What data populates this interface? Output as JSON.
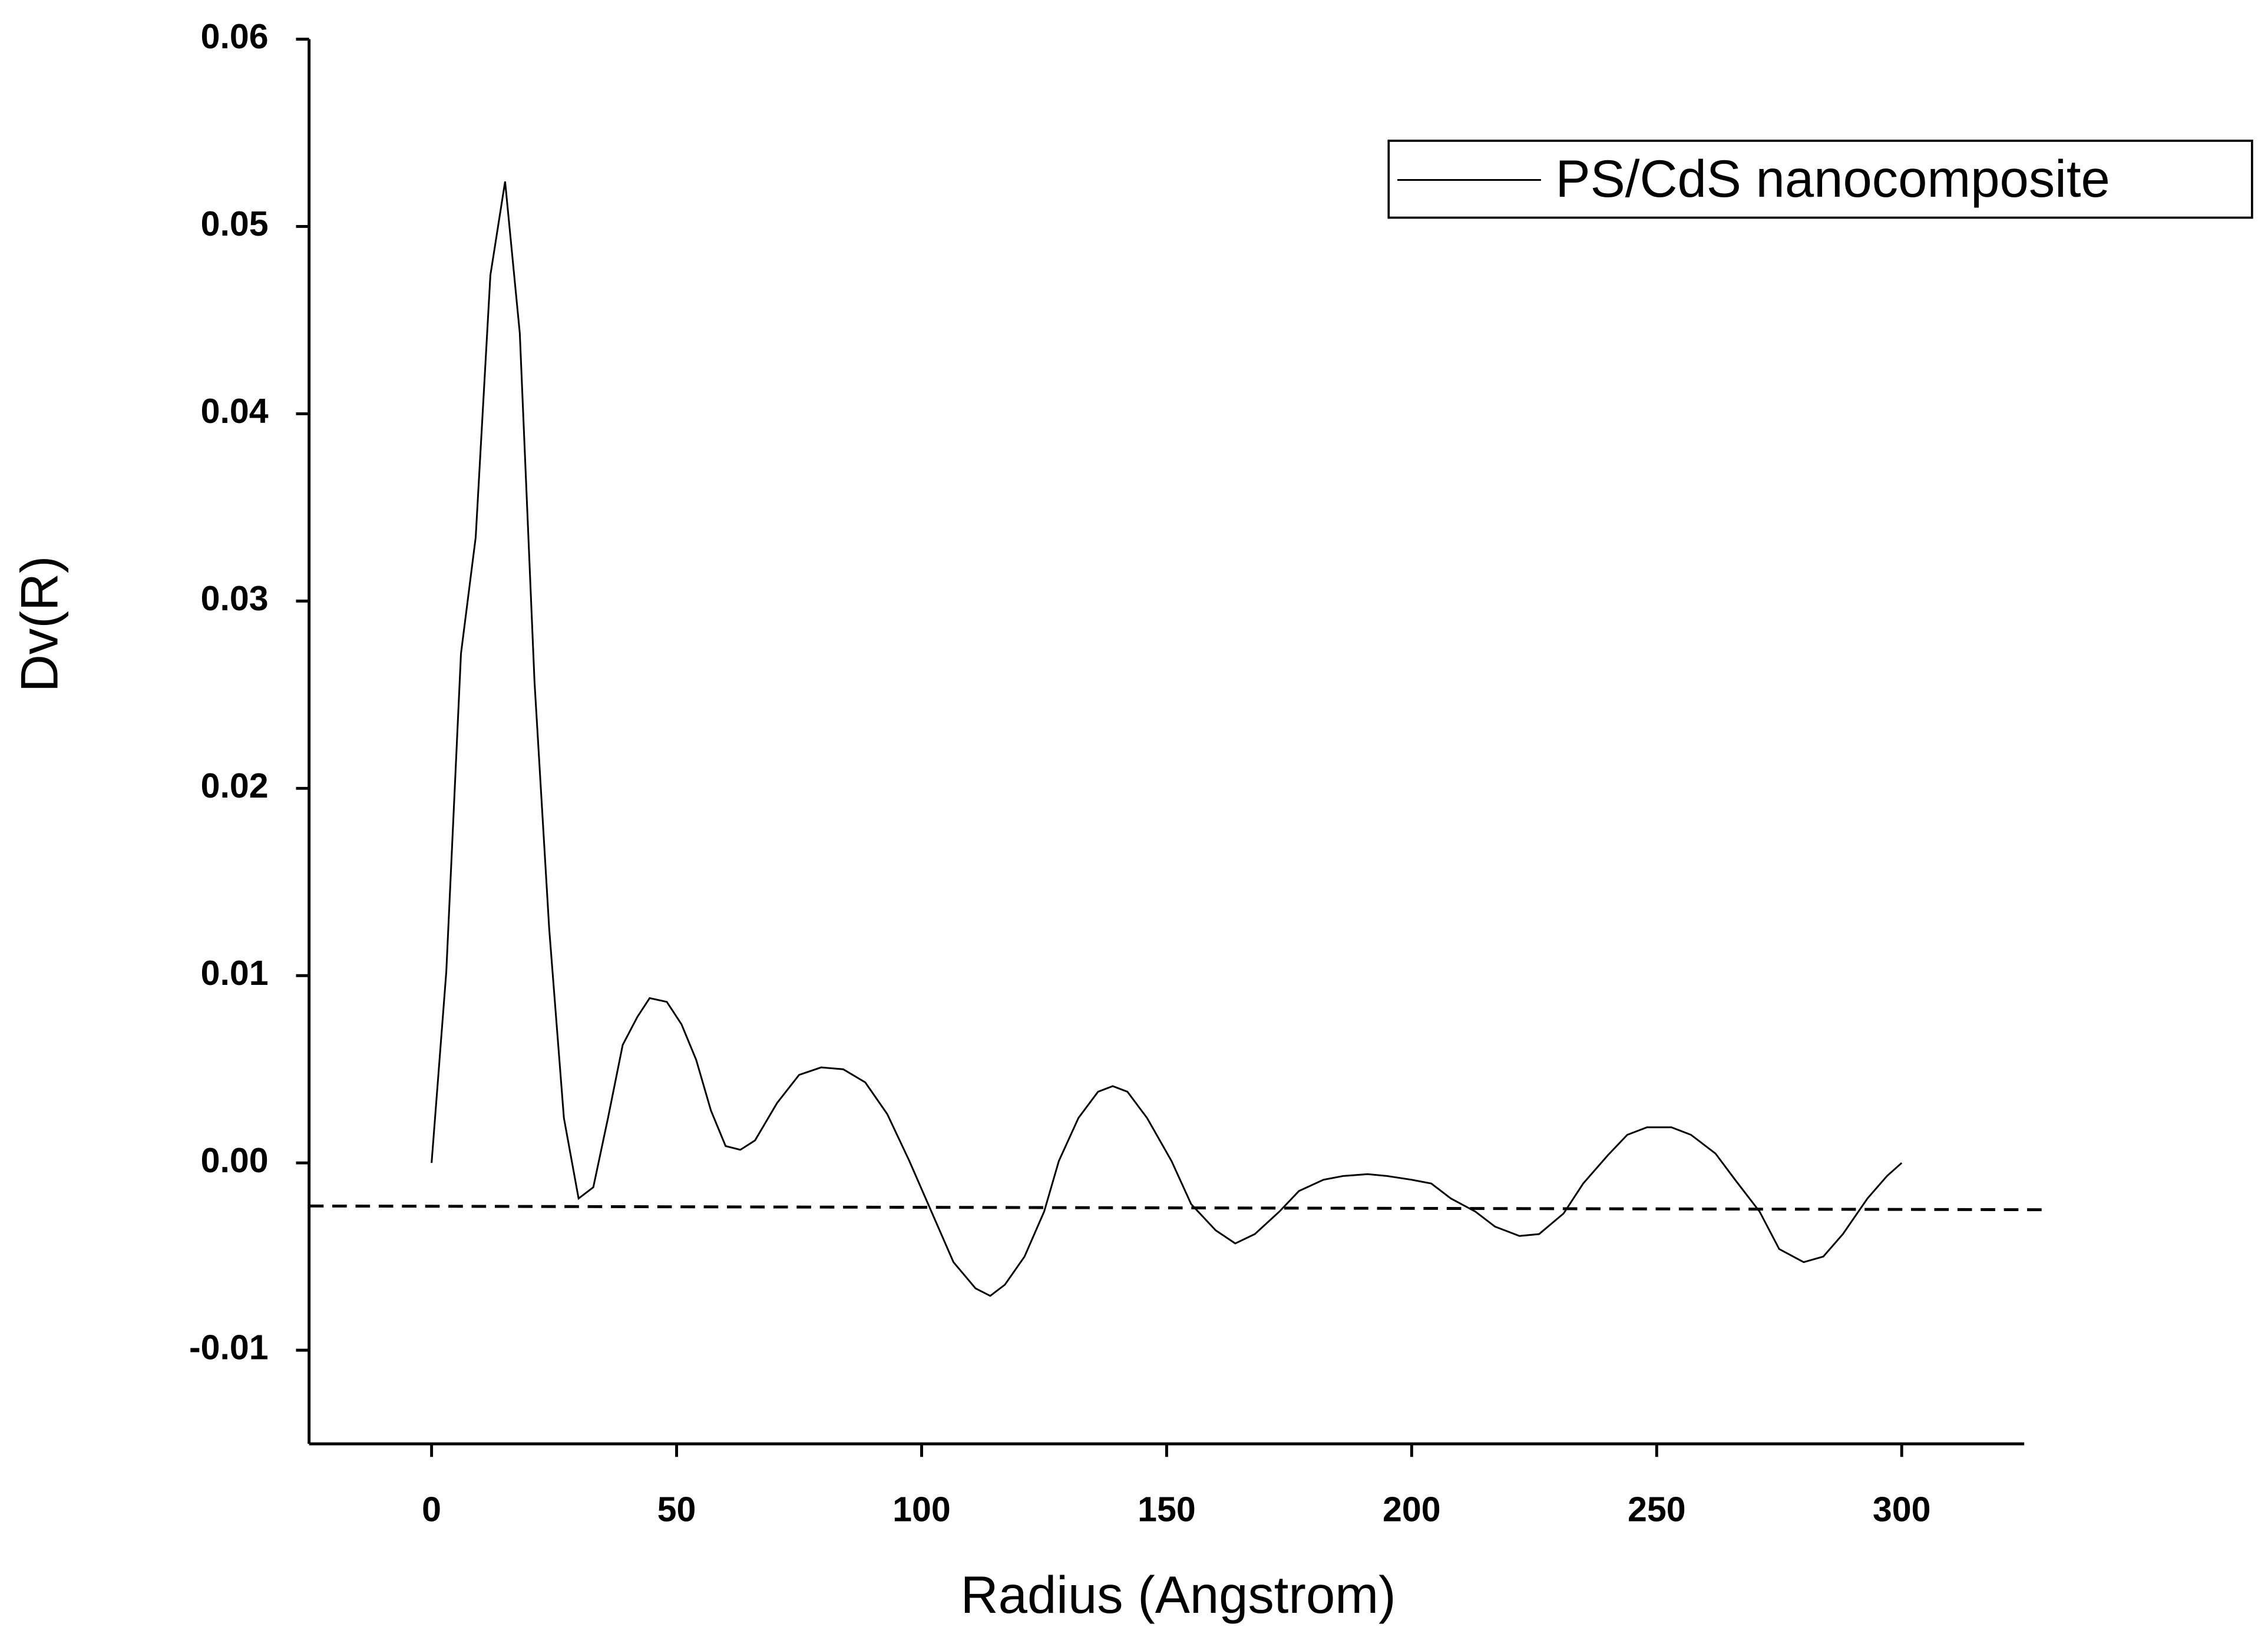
{
  "chart_data": {
    "type": "line",
    "xlabel": "Radius (Angstrom)",
    "ylabel": "Dv(R)",
    "xlim": [
      -25,
      325
    ],
    "ylim": [
      -0.015,
      0.06
    ],
    "xticks": [
      0,
      50,
      100,
      150,
      200,
      250,
      300
    ],
    "yticks": [
      -0.01,
      {
        "value": 0,
        "label": "0.00"
      },
      0.01,
      0.02,
      0.03,
      0.04,
      0.05,
      0.06
    ],
    "legend": "upper right",
    "series": [
      {
        "name": "PS/CdS nanocomposite",
        "color": "#000000",
        "dashed": false,
        "x": [
          0,
          3,
          6,
          9,
          12,
          15,
          18,
          21,
          24,
          27,
          30,
          33,
          36,
          39,
          42,
          44.5,
          48,
          51,
          54,
          57,
          60,
          63,
          66,
          70.5,
          75,
          79.5,
          84,
          88.5,
          93,
          97.5,
          102,
          106.5,
          111,
          114,
          117,
          121,
          125,
          128,
          132,
          136,
          139,
          142,
          146,
          151,
          155,
          160,
          164,
          168,
          173,
          177,
          182,
          186,
          191,
          195,
          200,
          204,
          208,
          213,
          217,
          222,
          226,
          231,
          235,
          240,
          244,
          248,
          253,
          257,
          262,
          266,
          271,
          275,
          280,
          284,
          288,
          293,
          297,
          300
        ],
        "values": [
          0,
          0.0102,
          0.0272,
          0.0334,
          0.0474,
          0.0524,
          0.0443,
          0.0257,
          0.0125,
          0.0024,
          -0.0019,
          -0.0013,
          0.0024,
          0.0063,
          0.0078,
          0.0088,
          0.0086,
          0.0074,
          0.0055,
          0.0028,
          0.0009,
          0.0007,
          0.0012,
          0.0032,
          0.0047,
          0.0051,
          0.005,
          0.0043,
          0.0026,
          0.0001,
          -0.0026,
          -0.0053,
          -0.0067,
          -0.0071,
          -0.0065,
          -0.005,
          -0.0026,
          0.0001,
          0.0024,
          0.0038,
          0.0041,
          0.0038,
          0.0024,
          0.0001,
          -0.0022,
          -0.0036,
          -0.0043,
          -0.0038,
          -0.0026,
          -0.0015,
          -0.0009,
          -0.0007,
          -0.0006,
          -0.0007,
          -0.0009,
          -0.0011,
          -0.0019,
          -0.0026,
          -0.0034,
          -0.0039,
          -0.0038,
          -0.0027,
          -0.0011,
          0.0004,
          0.0015,
          0.0019,
          0.0019,
          0.0015,
          0.0005,
          -0.0009,
          -0.0026,
          -0.0046,
          -0.0053,
          -0.005,
          -0.0038,
          -0.0019,
          -0.0007,
          0
        ]
      },
      {
        "color": "#000000",
        "dashed": true,
        "x": [
          -25,
          329
        ],
        "values": [
          -0.0023,
          -0.0025
        ]
      }
    ]
  }
}
